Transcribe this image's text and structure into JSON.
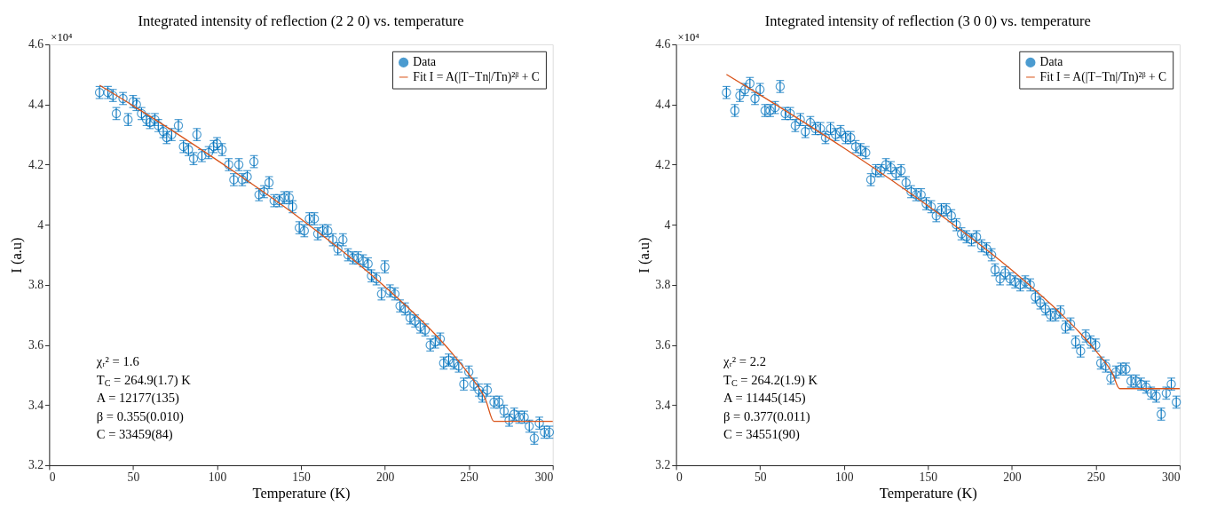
{
  "chart_data": [
    {
      "type": "scatter",
      "title": "Integrated intensity of reflection (2 2 0) vs. temperature",
      "xlabel": "Temperature (K)",
      "ylabel": "I (a.u)",
      "xlim": [
        0,
        300
      ],
      "xticks": [
        0,
        50,
        100,
        150,
        200,
        250,
        300
      ],
      "ylim": [
        3.2,
        4.6
      ],
      "yticks": [
        3.2,
        3.4,
        3.6,
        3.8,
        4,
        4.2,
        4.4,
        4.6
      ],
      "grid": false,
      "legend": "top right",
      "annotations": [
        "×10⁴",
        "χᵣ² = 1.6",
        "T$_{C}$ = 264.9(1.7) K",
        "A = 12177(135)",
        "β = 0.355(0.010)",
        "C = 33459(84)"
      ],
      "series": [
        {
          "name": "Data",
          "marker": "circle",
          "color": "#0072bd",
          "x": [
            30,
            35,
            38,
            40,
            44,
            47,
            50,
            52,
            55,
            58,
            60,
            63,
            65,
            68,
            70,
            73,
            77,
            80,
            83,
            86,
            88,
            91,
            95,
            98,
            100,
            103,
            107,
            110,
            113,
            115,
            118,
            122,
            125,
            128,
            131,
            134,
            137,
            140,
            143,
            145,
            149,
            152,
            155,
            158,
            160,
            163,
            166,
            169,
            172,
            175,
            178,
            181,
            184,
            187,
            190,
            192,
            195,
            198,
            200,
            203,
            206,
            209,
            212,
            215,
            218,
            221,
            224,
            227,
            230,
            233,
            235,
            238,
            241,
            244,
            247,
            250,
            253,
            256,
            258,
            261,
            265,
            268,
            271,
            274,
            277,
            280,
            283,
            286,
            289,
            292,
            295,
            298
          ],
          "values": [
            4.44,
            4.44,
            4.43,
            4.37,
            4.42,
            4.35,
            4.41,
            4.4,
            4.37,
            4.35,
            4.34,
            4.35,
            4.33,
            4.31,
            4.29,
            4.3,
            4.33,
            4.26,
            4.25,
            4.22,
            4.3,
            4.23,
            4.24,
            4.26,
            4.27,
            4.25,
            4.2,
            4.15,
            4.2,
            4.15,
            4.16,
            4.21,
            4.1,
            4.11,
            4.14,
            4.08,
            4.08,
            4.09,
            4.09,
            4.06,
            3.99,
            3.98,
            4.02,
            4.02,
            3.97,
            3.98,
            3.98,
            3.95,
            3.92,
            3.95,
            3.9,
            3.89,
            3.89,
            3.88,
            3.87,
            3.83,
            3.82,
            3.77,
            3.86,
            3.78,
            3.77,
            3.73,
            3.72,
            3.69,
            3.68,
            3.66,
            3.65,
            3.6,
            3.61,
            3.62,
            3.54,
            3.55,
            3.54,
            3.53,
            3.47,
            3.51,
            3.47,
            3.45,
            3.43,
            3.45,
            3.41,
            3.41,
            3.38,
            3.35,
            3.37,
            3.36,
            3.36,
            3.33,
            3.29,
            3.34,
            3.31,
            3.31
          ],
          "errors": [
            0.02,
            0.02,
            0.02,
            0.02,
            0.02,
            0.02,
            0.02,
            0.02,
            0.02,
            0.02,
            0.02,
            0.02,
            0.02,
            0.02,
            0.02,
            0.02,
            0.02,
            0.02,
            0.02,
            0.02,
            0.02,
            0.02,
            0.02,
            0.02,
            0.02,
            0.02,
            0.02,
            0.02,
            0.02,
            0.02,
            0.02,
            0.02,
            0.02,
            0.02,
            0.02,
            0.02,
            0.02,
            0.02,
            0.02,
            0.02,
            0.02,
            0.02,
            0.02,
            0.02,
            0.02,
            0.02,
            0.02,
            0.02,
            0.02,
            0.02,
            0.02,
            0.02,
            0.02,
            0.02,
            0.02,
            0.02,
            0.02,
            0.02,
            0.02,
            0.02,
            0.02,
            0.02,
            0.02,
            0.02,
            0.02,
            0.02,
            0.02,
            0.02,
            0.02,
            0.02,
            0.02,
            0.02,
            0.02,
            0.02,
            0.02,
            0.02,
            0.02,
            0.02,
            0.02,
            0.02,
            0.02,
            0.02,
            0.02,
            0.02,
            0.02,
            0.02,
            0.02,
            0.02,
            0.02,
            0.02,
            0.02,
            0.02
          ]
        },
        {
          "name": "Fit I = A(|T−Tn|/Tn)²ᵝ + C",
          "type": "line",
          "marker": "none",
          "color": "#d95319",
          "x": [
            30,
            50,
            100,
            150,
            200,
            230,
            240,
            250,
            260,
            264.9,
            300
          ],
          "values": [
            4.464,
            4.396,
            4.215,
            4.019,
            3.794,
            3.635,
            3.573,
            3.503,
            3.418,
            3.346,
            3.346
          ]
        }
      ]
    },
    {
      "type": "scatter",
      "title": "Integrated intensity of reflection (3 0 0) vs. temperature",
      "xlabel": "Temperature (K)",
      "ylabel": "I (a.u)",
      "xlim": [
        0,
        300
      ],
      "xticks": [
        0,
        50,
        100,
        150,
        200,
        250,
        300
      ],
      "ylim": [
        3.2,
        4.6
      ],
      "yticks": [
        3.2,
        3.4,
        3.6,
        3.8,
        4,
        4.2,
        4.4,
        4.6
      ],
      "grid": false,
      "legend": "top right",
      "annotations": [
        "×10⁴",
        "χᵣ² = 2.2",
        "T$_{C}$ = 264.2(1.9) K",
        "A = 11445(145)",
        "β = 0.377(0.011)",
        "C = 34551(90)"
      ],
      "series": [
        {
          "name": "Data",
          "marker": "circle",
          "color": "#0072bd",
          "x": [
            30,
            35,
            38,
            41,
            44,
            47,
            50,
            53,
            56,
            59,
            62,
            65,
            68,
            71,
            74,
            77,
            80,
            83,
            86,
            89,
            92,
            95,
            98,
            101,
            104,
            107,
            110,
            113,
            116,
            119,
            122,
            125,
            128,
            131,
            134,
            137,
            140,
            143,
            146,
            149,
            152,
            155,
            158,
            161,
            164,
            167,
            170,
            173,
            176,
            179,
            182,
            185,
            188,
            190,
            193,
            196,
            199,
            202,
            205,
            208,
            211,
            214,
            217,
            220,
            223,
            226,
            229,
            232,
            235,
            238,
            241,
            244,
            247,
            250,
            253,
            256,
            259,
            262,
            265,
            268,
            271,
            274,
            277,
            280,
            283,
            286,
            289,
            292,
            295,
            298
          ],
          "values": [
            4.44,
            4.38,
            4.43,
            4.45,
            4.47,
            4.42,
            4.45,
            4.38,
            4.38,
            4.39,
            4.46,
            4.37,
            4.37,
            4.33,
            4.35,
            4.31,
            4.34,
            4.32,
            4.32,
            4.29,
            4.32,
            4.3,
            4.31,
            4.29,
            4.29,
            4.26,
            4.25,
            4.24,
            4.15,
            4.18,
            4.18,
            4.2,
            4.19,
            4.17,
            4.18,
            4.14,
            4.11,
            4.1,
            4.1,
            4.07,
            4.06,
            4.03,
            4.05,
            4.05,
            4.03,
            4.0,
            3.97,
            3.96,
            3.95,
            3.96,
            3.93,
            3.92,
            3.9,
            3.85,
            3.82,
            3.84,
            3.82,
            3.81,
            3.8,
            3.81,
            3.8,
            3.76,
            3.74,
            3.72,
            3.7,
            3.7,
            3.71,
            3.66,
            3.67,
            3.61,
            3.58,
            3.63,
            3.61,
            3.6,
            3.54,
            3.53,
            3.49,
            3.51,
            3.52,
            3.52,
            3.48,
            3.48,
            3.47,
            3.46,
            3.44,
            3.43,
            3.37,
            3.44,
            3.47,
            3.41
          ],
          "errors": [
            0.02,
            0.02,
            0.02,
            0.02,
            0.02,
            0.02,
            0.02,
            0.02,
            0.02,
            0.02,
            0.02,
            0.02,
            0.02,
            0.02,
            0.02,
            0.02,
            0.02,
            0.02,
            0.02,
            0.02,
            0.02,
            0.02,
            0.02,
            0.02,
            0.02,
            0.02,
            0.02,
            0.02,
            0.02,
            0.02,
            0.02,
            0.02,
            0.02,
            0.02,
            0.02,
            0.02,
            0.02,
            0.02,
            0.02,
            0.02,
            0.02,
            0.02,
            0.02,
            0.02,
            0.02,
            0.02,
            0.02,
            0.02,
            0.02,
            0.02,
            0.02,
            0.02,
            0.02,
            0.02,
            0.02,
            0.02,
            0.02,
            0.02,
            0.02,
            0.02,
            0.02,
            0.02,
            0.02,
            0.02,
            0.02,
            0.02,
            0.02,
            0.02,
            0.02,
            0.02,
            0.02,
            0.02,
            0.02,
            0.02,
            0.02,
            0.02,
            0.02,
            0.02,
            0.02,
            0.02,
            0.02,
            0.02,
            0.02,
            0.02,
            0.02,
            0.02,
            0.02,
            0.02,
            0.02,
            0.02
          ]
        },
        {
          "name": "Fit I = A(|T−Tn|/Tn)²ᵝ + C",
          "type": "line",
          "marker": "none",
          "color": "#d95319",
          "x": [
            30,
            50,
            100,
            150,
            200,
            230,
            240,
            250,
            260,
            264.2,
            300
          ],
          "values": [
            4.5,
            4.432,
            4.255,
            4.063,
            3.849,
            3.7,
            3.644,
            3.581,
            3.505,
            3.455,
            3.455
          ]
        }
      ]
    }
  ]
}
